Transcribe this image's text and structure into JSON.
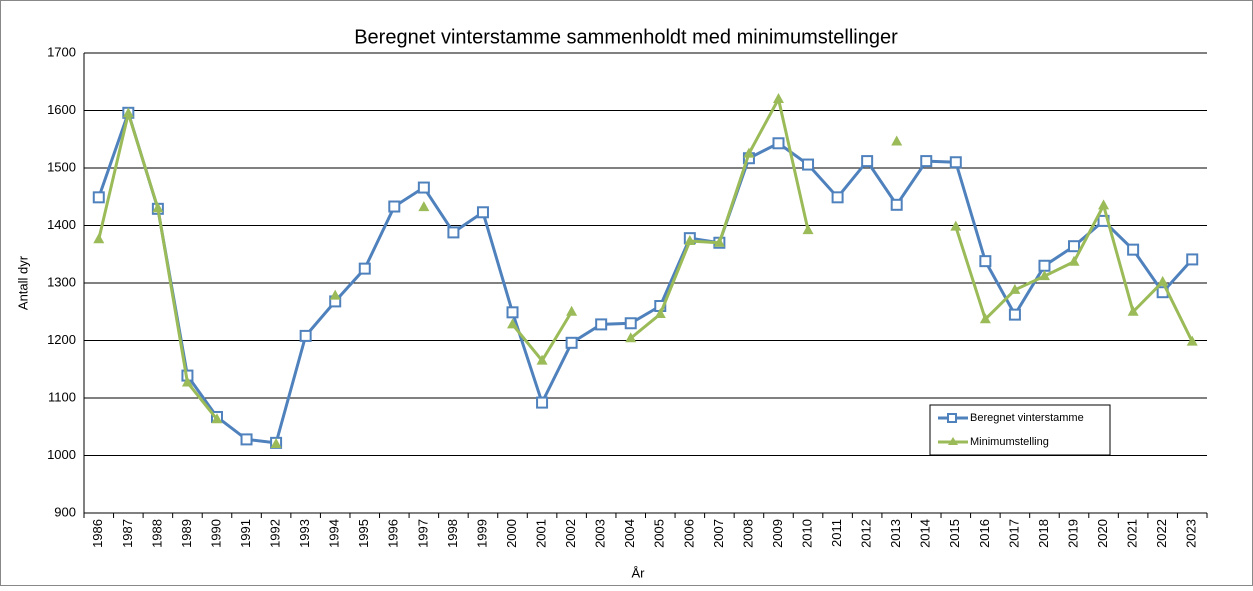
{
  "chart_data": {
    "type": "line",
    "title": "Beregnet vinterstamme sammenholdt med minimumstellinger",
    "xlabel": "År",
    "ylabel": "Antall dyr",
    "categories": [
      "1986",
      "1987",
      "1988",
      "1989",
      "1990",
      "1991",
      "1992",
      "1993",
      "1994",
      "1995",
      "1996",
      "1997",
      "1998",
      "1999",
      "2000",
      "2001",
      "2002",
      "2003",
      "2004",
      "2005",
      "2006",
      "2007",
      "2008",
      "2009",
      "2010",
      "2011",
      "2012",
      "2013",
      "2014",
      "2015",
      "2016",
      "2017",
      "2018",
      "2019",
      "2020",
      "2021",
      "2022",
      "2023"
    ],
    "series": [
      {
        "name": "Beregnet vinterstamme",
        "color": "#4f81bd",
        "marker": "square",
        "values": [
          1449,
          1596,
          1429,
          1139,
          1067,
          1028,
          1022,
          1208,
          1268,
          1325,
          1433,
          1466,
          1388,
          1423,
          1249,
          1092,
          1196,
          1228,
          1230,
          1260,
          1378,
          1370,
          1517,
          1543,
          1506,
          1449,
          1512,
          1436,
          1512,
          1510,
          1338,
          1245,
          1330,
          1364,
          1408,
          1358,
          1284,
          1341
        ]
      },
      {
        "name": "Minimumstelling",
        "color": "#9bbb59",
        "marker": "triangle",
        "values": [
          1376,
          1595,
          1430,
          1127,
          1063,
          null,
          1020,
          null,
          1278,
          null,
          null,
          1432,
          null,
          null,
          1228,
          1165,
          1250,
          null,
          1204,
          1246,
          1373,
          1370,
          1525,
          1620,
          1392,
          null,
          null,
          1546,
          null,
          1398,
          1237,
          1288,
          1312,
          1337,
          1435,
          1250,
          1302,
          1198
        ]
      }
    ],
    "ylim": [
      900,
      1700
    ],
    "yticks": [
      900,
      1000,
      1100,
      1200,
      1300,
      1400,
      1500,
      1600,
      1700
    ],
    "grid": true,
    "legend": "lower right"
  }
}
